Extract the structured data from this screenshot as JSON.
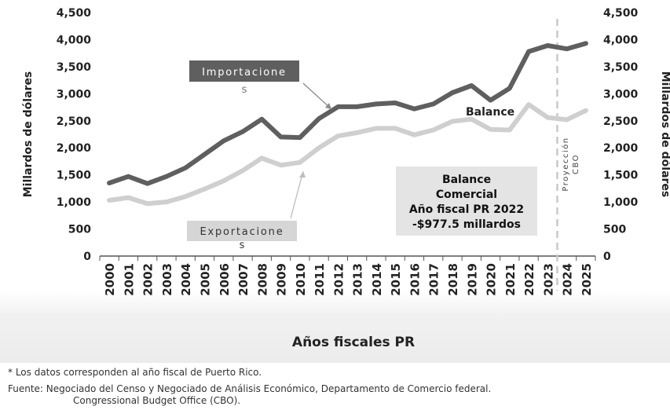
{
  "chart_data": {
    "type": "line",
    "x": [
      "2000",
      "2001",
      "2002",
      "2003",
      "2004",
      "2005",
      "2006",
      "2007",
      "2008",
      "2009",
      "2010",
      "2011",
      "2012",
      "2013",
      "2014",
      "2015",
      "2016",
      "2017",
      "2018",
      "2019",
      "2020",
      "2021",
      "2022",
      "2023",
      "2024",
      "2025"
    ],
    "series": [
      {
        "name": "Importaciones",
        "color": "#5f5f5f",
        "values": [
          1350,
          1470,
          1340,
          1470,
          1630,
          1880,
          2130,
          2300,
          2530,
          2200,
          2190,
          2540,
          2760,
          2760,
          2810,
          2830,
          2720,
          2810,
          3020,
          3150,
          2880,
          3100,
          3780,
          3890,
          3830,
          3930
        ]
      },
      {
        "name": "Exportaciones",
        "color": "#cfcfcf",
        "values": [
          1030,
          1080,
          970,
          1000,
          1100,
          1240,
          1390,
          1580,
          1810,
          1680,
          1730,
          2000,
          2220,
          2280,
          2360,
          2360,
          2240,
          2330,
          2490,
          2530,
          2340,
          2330,
          2800,
          2560,
          2520,
          2690
        ]
      }
    ],
    "ylabel_left": "Millardos de dólares",
    "ylabel_right": "Millardos de dólares",
    "xlabel": "Años fiscales PR",
    "ylim": [
      0,
      4500
    ],
    "yticks": [
      "0",
      "500",
      "1,000",
      "1,500",
      "2,000",
      "2,500",
      "3,000",
      "3,500",
      "4,000",
      "4,500"
    ],
    "grid": false,
    "projection_label": "Proyección CBO",
    "projection_between": [
      "2023",
      "2024"
    ]
  },
  "annotations": {
    "imports_label": "Importaciones",
    "exports_label": "Exportaciones",
    "balance_label": "Balance",
    "box_lines": [
      "Balance",
      "Comercial",
      "Año fiscal PR 2022",
      "-$977.5 millardos"
    ]
  },
  "notes": {
    "note1": "* Los datos corresponden al año fiscal de Puerto Rico.",
    "source_line1": "Fuente: Negociado del Censo y Negociado de Análisis Económico, Departamento de Comercio federal.",
    "source_line2": "Congressional Budget Office (CBO)."
  },
  "colors": {
    "imports": "#5f5f5f",
    "exports": "#cfcfcf",
    "label_box_dark": "#5f5f5f",
    "label_box_light": "#d6d6d6",
    "balance_box": "#e4e4e4",
    "projection_line": "#c8c8c8"
  }
}
